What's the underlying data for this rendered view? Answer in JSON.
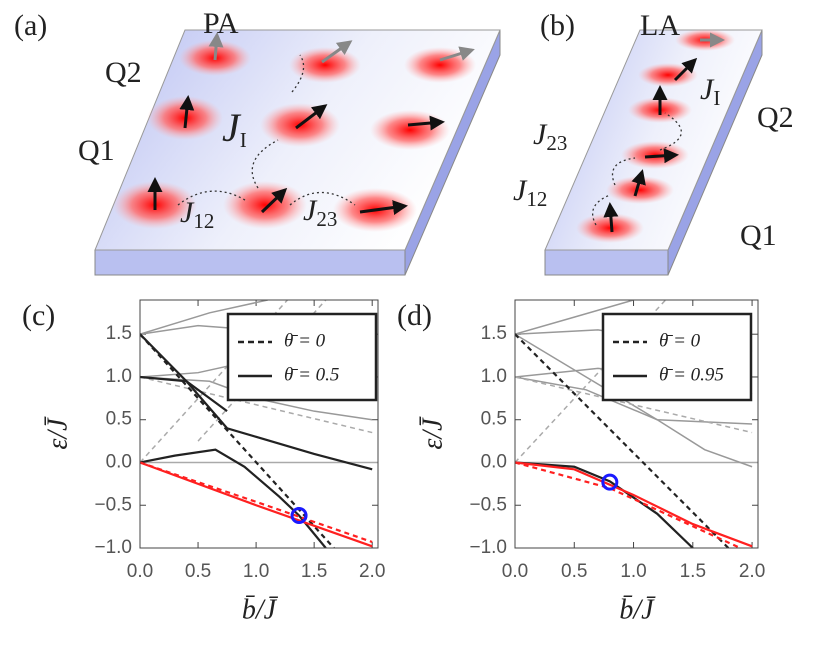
{
  "schematic_a": {
    "panel": "(a)",
    "phase": "PA",
    "q2": "Q2",
    "q1": "Q1",
    "j_i": {
      "symbol": "J",
      "subscript": "I"
    },
    "j_12": {
      "symbol": "J",
      "subscript": "12"
    },
    "j_23": {
      "symbol": "J",
      "subscript": "23"
    }
  },
  "schematic_b": {
    "panel": "(b)",
    "phase": "LA",
    "q2": "Q2",
    "q1": "Q1",
    "j_i": {
      "symbol": "J",
      "subscript": "I"
    },
    "j_12": {
      "symbol": "J",
      "subscript": "12"
    },
    "j_23": {
      "symbol": "J",
      "subscript": "23"
    }
  },
  "chart_data": [
    {
      "type": "line",
      "label": "(c)",
      "x_label": "b̄/J̄",
      "y_label": "ε/J̄",
      "xlim": [
        0,
        2.05
      ],
      "ylim": [
        -1.0,
        1.9
      ],
      "xticks": [
        {
          "value": 0,
          "label": "0.0"
        },
        0.5,
        {
          "value": 1,
          "label": "1.0"
        },
        1.5,
        {
          "value": 2,
          "label": "2.0"
        }
      ],
      "yticks": [
        {
          "value": -1,
          "label": "−1.0"
        },
        {
          "value": -0.5,
          "label": "−0.5"
        },
        {
          "value": 0,
          "label": "0.0"
        },
        0.5,
        {
          "value": 1,
          "label": "1.0"
        },
        1.5
      ],
      "series": [
        {
          "color": "#aaaaaa",
          "dashed": false,
          "x": [
            0,
            2.05
          ],
          "values": [
            0,
            0
          ]
        },
        {
          "color": "#999999",
          "dashed": false,
          "x": [
            0,
            0.6,
            1.1
          ],
          "values": [
            1.5,
            1.75,
            1.9
          ]
        },
        {
          "color": "#999999",
          "dashed": false,
          "x": [
            0,
            0.5,
            1.0,
            1.5,
            2.0
          ],
          "values": [
            1.5,
            1.6,
            1.55,
            1.45,
            1.4
          ]
        },
        {
          "color": "#999999",
          "dashed": false,
          "x": [
            0,
            0.5,
            1.0,
            1.5,
            2.0
          ],
          "values": [
            1.0,
            1.05,
            1.2,
            1.3,
            1.3
          ]
        },
        {
          "color": "#999999",
          "dashed": false,
          "x": [
            0,
            0.6,
            1.0,
            1.5,
            2.0
          ],
          "values": [
            1.0,
            0.95,
            0.75,
            0.6,
            0.5
          ]
        },
        {
          "color": "#aaaaaa",
          "dashed": true,
          "x": [
            0,
            1.27
          ],
          "values": [
            0,
            1.9
          ]
        },
        {
          "color": "#aaaaaa",
          "dashed": true,
          "x": [
            0,
            2.0
          ],
          "values": [
            1.0,
            0.35
          ]
        },
        {
          "color": "#aaaaaa",
          "dashed": true,
          "x": [
            0.5,
            1.6
          ],
          "values": [
            0.25,
            1.9
          ]
        },
        {
          "name": "θ̄ = 0",
          "color": "#222222",
          "dashed": true,
          "x": [
            0,
            1.67
          ],
          "values": [
            1.5,
            -1.0
          ]
        },
        {
          "name": "θ̄ = 0.5",
          "color": "#222222",
          "dashed": false,
          "x": [
            0,
            0.3,
            0.65,
            0.9,
            1.2,
            1.37,
            1.6
          ],
          "values": [
            0,
            0.08,
            0.15,
            -0.05,
            -0.4,
            -0.62,
            -1.0
          ]
        },
        {
          "color": "#222222",
          "dashed": false,
          "x": [
            0,
            0.4,
            0.75,
            1.0,
            1.5,
            2.0
          ],
          "values": [
            1.5,
            0.95,
            0.4,
            0.3,
            0.1,
            -0.08
          ]
        },
        {
          "color": "#222222",
          "dashed": false,
          "x": [
            0,
            0.4,
            0.75
          ],
          "values": [
            1.0,
            0.95,
            0.6
          ]
        },
        {
          "color": "#ff2020",
          "dashed": false,
          "x": [
            0,
            1.0,
            2.0
          ],
          "values": [
            0,
            -0.5,
            -0.98
          ]
        },
        {
          "color": "#ff2020",
          "dashed": true,
          "x": [
            0,
            1.0,
            2.0
          ],
          "values": [
            0,
            -0.46,
            -0.93
          ]
        }
      ],
      "markers": [
        {
          "x": 1.37,
          "y": -0.62,
          "color": "#1a1aff"
        }
      ]
    },
    {
      "type": "line",
      "label": "(d)",
      "x_label": "b̄/J̄",
      "y_label": "ε/J̄",
      "xlim": [
        0,
        2.05
      ],
      "ylim": [
        -1.0,
        1.9
      ],
      "xticks": [
        {
          "value": 0,
          "label": "0.0"
        },
        0.5,
        {
          "value": 1,
          "label": "1.0"
        },
        1.5,
        {
          "value": 2,
          "label": "2.0"
        }
      ],
      "yticks": [
        {
          "value": -1,
          "label": "−1.0"
        },
        {
          "value": -0.5,
          "label": "−0.5"
        },
        {
          "value": 0,
          "label": "0.0"
        },
        0.5,
        {
          "value": 1,
          "label": "1.0"
        },
        1.5
      ],
      "series": [
        {
          "color": "#aaaaaa",
          "dashed": false,
          "x": [
            0,
            2.05
          ],
          "values": [
            0,
            0
          ]
        },
        {
          "color": "#999999",
          "dashed": false,
          "x": [
            0,
            0.5,
            1.0
          ],
          "values": [
            1.5,
            1.7,
            1.9
          ]
        },
        {
          "color": "#999999",
          "dashed": false,
          "x": [
            0,
            0.7,
            1.4,
            2.0
          ],
          "values": [
            1.5,
            1.55,
            1.4,
            1.3
          ]
        },
        {
          "color": "#999999",
          "dashed": false,
          "x": [
            0,
            0.7,
            1.4,
            2.0
          ],
          "values": [
            1.0,
            1.1,
            1.0,
            0.8
          ]
        },
        {
          "color": "#999999",
          "dashed": false,
          "x": [
            0,
            0.6,
            1.2,
            2.0
          ],
          "values": [
            1.0,
            0.85,
            0.5,
            0.45
          ]
        },
        {
          "color": "#999999",
          "dashed": false,
          "x": [
            0,
            0.6,
            1.2,
            1.6,
            2.0
          ],
          "values": [
            1.5,
            1.0,
            0.5,
            0.15,
            -0.05
          ]
        },
        {
          "color": "#aaaaaa",
          "dashed": true,
          "x": [
            0,
            1.27
          ],
          "values": [
            0,
            1.9
          ]
        },
        {
          "color": "#aaaaaa",
          "dashed": true,
          "x": [
            0,
            2.0
          ],
          "values": [
            1.0,
            0.35
          ]
        },
        {
          "name": "θ̄ = 0",
          "color": "#222222",
          "dashed": true,
          "x": [
            0,
            1.8
          ],
          "values": [
            1.5,
            -1.0
          ]
        },
        {
          "name": "θ̄ = 0.95",
          "color": "#222222",
          "dashed": false,
          "x": [
            0,
            0.5,
            0.8,
            1.2,
            1.5
          ],
          "values": [
            0,
            -0.05,
            -0.22,
            -0.6,
            -1.0
          ]
        },
        {
          "color": "#ff2020",
          "dashed": false,
          "x": [
            0,
            0.5,
            1.0,
            1.5,
            2.0
          ],
          "values": [
            0,
            -0.08,
            -0.38,
            -0.72,
            -0.98
          ]
        },
        {
          "color": "#ff2020",
          "dashed": true,
          "x": [
            0,
            0.8,
            1.9
          ],
          "values": [
            0,
            -0.3,
            -1.0
          ]
        }
      ],
      "markers": [
        {
          "x": 0.8,
          "y": -0.23,
          "color": "#1a1aff"
        }
      ]
    }
  ]
}
